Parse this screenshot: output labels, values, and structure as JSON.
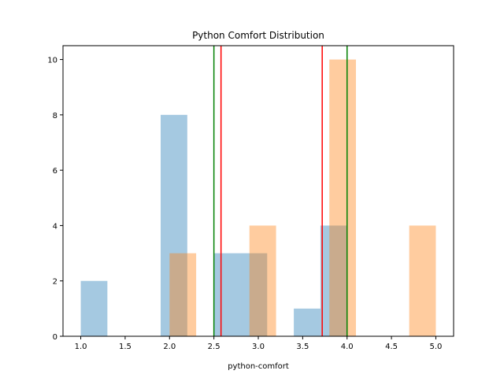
{
  "chart_data": {
    "type": "bar",
    "title": "Python Comfort Distribution",
    "xlabel": "python-comfort",
    "ylabel": "",
    "xlim": [
      0.8,
      5.2
    ],
    "ylim": [
      0,
      10.5
    ],
    "xticks": [
      1.0,
      1.5,
      2.0,
      2.5,
      3.0,
      3.5,
      4.0,
      4.5,
      5.0
    ],
    "xtick_labels": [
      "1.0",
      "1.5",
      "2.0",
      "2.5",
      "3.0",
      "3.5",
      "4.0",
      "4.5",
      "5.0"
    ],
    "yticks": [
      0,
      2,
      4,
      6,
      8,
      10
    ],
    "ytick_labels": [
      "0",
      "2",
      "4",
      "6",
      "8",
      "10"
    ],
    "grid": false,
    "series": [
      {
        "color": "#1f77b4",
        "opacity": 0.4,
        "bars": [
          {
            "x0": 1.0,
            "x1": 1.3,
            "value": 2
          },
          {
            "x0": 1.3,
            "x1": 1.6,
            "value": 0
          },
          {
            "x0": 1.6,
            "x1": 1.9,
            "value": 0
          },
          {
            "x0": 1.9,
            "x1": 2.2,
            "value": 8
          },
          {
            "x0": 2.2,
            "x1": 2.5,
            "value": 0
          },
          {
            "x0": 2.5,
            "x1": 2.8,
            "value": 3
          },
          {
            "x0": 2.8,
            "x1": 3.1,
            "value": 3
          },
          {
            "x0": 3.1,
            "x1": 3.4,
            "value": 0
          },
          {
            "x0": 3.4,
            "x1": 3.7,
            "value": 1
          },
          {
            "x0": 3.7,
            "x1": 4.0,
            "value": 4
          }
        ]
      },
      {
        "color": "#ff7f0e",
        "opacity": 0.4,
        "bars": [
          {
            "x0": 2.0,
            "x1": 2.3,
            "value": 3
          },
          {
            "x0": 2.3,
            "x1": 2.6,
            "value": 0
          },
          {
            "x0": 2.6,
            "x1": 2.9,
            "value": 0
          },
          {
            "x0": 2.9,
            "x1": 3.2,
            "value": 4
          },
          {
            "x0": 3.2,
            "x1": 3.5,
            "value": 0
          },
          {
            "x0": 3.5,
            "x1": 3.8,
            "value": 0
          },
          {
            "x0": 3.8,
            "x1": 4.1,
            "value": 10
          },
          {
            "x0": 4.1,
            "x1": 4.4,
            "value": 0
          },
          {
            "x0": 4.4,
            "x1": 4.7,
            "value": 0
          },
          {
            "x0": 4.7,
            "x1": 5.0,
            "value": 4
          }
        ]
      }
    ],
    "vlines": [
      {
        "x": 2.5,
        "color": "#008000"
      },
      {
        "x": 2.58,
        "color": "#ff0000"
      },
      {
        "x": 3.72,
        "color": "#ff0000"
      },
      {
        "x": 4.0,
        "color": "#008000"
      }
    ]
  }
}
